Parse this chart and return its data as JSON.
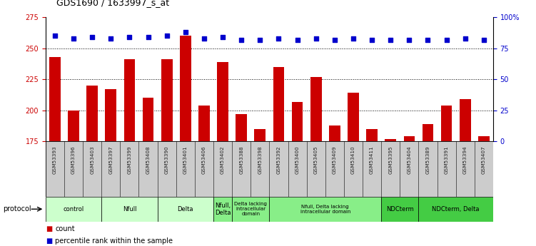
{
  "title": "GDS1690 / 1633997_s_at",
  "samples": [
    "GSM53393",
    "GSM53396",
    "GSM53403",
    "GSM53397",
    "GSM53399",
    "GSM53408",
    "GSM53390",
    "GSM53401",
    "GSM53406",
    "GSM53402",
    "GSM53388",
    "GSM53398",
    "GSM53392",
    "GSM53400",
    "GSM53405",
    "GSM53409",
    "GSM53410",
    "GSM53411",
    "GSM53395",
    "GSM53404",
    "GSM53389",
    "GSM53391",
    "GSM53394",
    "GSM53407"
  ],
  "counts": [
    243,
    200,
    220,
    217,
    241,
    210,
    241,
    260,
    204,
    239,
    197,
    185,
    235,
    207,
    227,
    188,
    214,
    185,
    177,
    179,
    189,
    204,
    209,
    179
  ],
  "percentiles_right": [
    85,
    83,
    84,
    83,
    84,
    84,
    85,
    88,
    83,
    84,
    82,
    82,
    83,
    82,
    83,
    82,
    83,
    82,
    82,
    82,
    82,
    82,
    83,
    82
  ],
  "ylim_left": [
    175,
    275
  ],
  "ylim_right": [
    0,
    100
  ],
  "yticks_left": [
    175,
    200,
    225,
    250,
    275
  ],
  "yticks_right": [
    0,
    25,
    50,
    75,
    100
  ],
  "bar_color": "#cc0000",
  "dot_color": "#0000cc",
  "bg_color": "#ffffff",
  "sample_bg_color": "#cccccc",
  "protocol_groups": [
    {
      "label": "control",
      "start": 0,
      "end": 3,
      "color": "#ccffcc"
    },
    {
      "label": "Nfull",
      "start": 3,
      "end": 6,
      "color": "#ccffcc"
    },
    {
      "label": "Delta",
      "start": 6,
      "end": 9,
      "color": "#ccffcc"
    },
    {
      "label": "Nfull,\nDelta",
      "start": 9,
      "end": 10,
      "color": "#88ee88"
    },
    {
      "label": "Delta lacking\nintracellular\ndomain",
      "start": 10,
      "end": 12,
      "color": "#88ee88"
    },
    {
      "label": "Nfull, Delta lacking\nintracellular domain",
      "start": 12,
      "end": 18,
      "color": "#88ee88"
    },
    {
      "label": "NDCterm",
      "start": 18,
      "end": 20,
      "color": "#44cc44"
    },
    {
      "label": "NDCterm, Delta",
      "start": 20,
      "end": 24,
      "color": "#44cc44"
    }
  ],
  "bar_width": 0.6,
  "legend_count_label": "count",
  "legend_pct_label": "percentile rank within the sample",
  "gridlines": [
    200,
    225,
    250
  ]
}
